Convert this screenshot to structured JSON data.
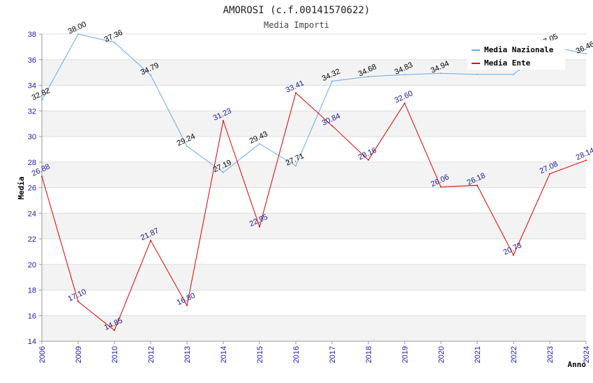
{
  "chart_data": {
    "type": "line",
    "title": "AMOROSI (c.f.00141570622)",
    "subtitle": "Media Importi",
    "xlabel": "Anno",
    "ylabel": "Media",
    "ylim": [
      14,
      38
    ],
    "yticks": [
      14,
      16,
      18,
      20,
      22,
      24,
      26,
      28,
      30,
      32,
      34,
      36,
      38
    ],
    "categories": [
      "2006",
      "2009",
      "2010",
      "2012",
      "2013",
      "2014",
      "2015",
      "2016",
      "2017",
      "2018",
      "2019",
      "2020",
      "2021",
      "2022",
      "2023",
      "2024"
    ],
    "series": [
      {
        "name": "Media Nazionale",
        "color": "#6aa9e9",
        "label_color": "#000000",
        "values": [
          32.82,
          38.0,
          37.36,
          34.79,
          29.24,
          27.19,
          29.43,
          27.71,
          34.32,
          34.68,
          34.83,
          34.94,
          34.85,
          34.85,
          37.05,
          36.46
        ],
        "labels": [
          "32.82",
          "38.00",
          "37.36",
          "34.79",
          "29.24",
          "27.19",
          "29.43",
          "27.71",
          "34.32",
          "34.68",
          "34.83",
          "34.94",
          "",
          "",
          "37.05",
          "36.46"
        ]
      },
      {
        "name": "Media Ente",
        "color": "#e00000",
        "label_color": "#1a1a90",
        "values": [
          26.88,
          17.1,
          14.85,
          21.87,
          16.8,
          31.23,
          22.95,
          33.41,
          30.84,
          28.16,
          32.6,
          26.06,
          26.18,
          20.73,
          27.08,
          28.14
        ],
        "labels": [
          "26.88",
          "17.10",
          "14.85",
          "21.87",
          "16.80",
          "31.23",
          "22.95",
          "33.41",
          "30.84",
          "28.16",
          "32.60",
          "26.06",
          "26.18",
          "20.73",
          "27.08",
          "28.14"
        ]
      }
    ],
    "grid": true,
    "legend": "top-right"
  }
}
